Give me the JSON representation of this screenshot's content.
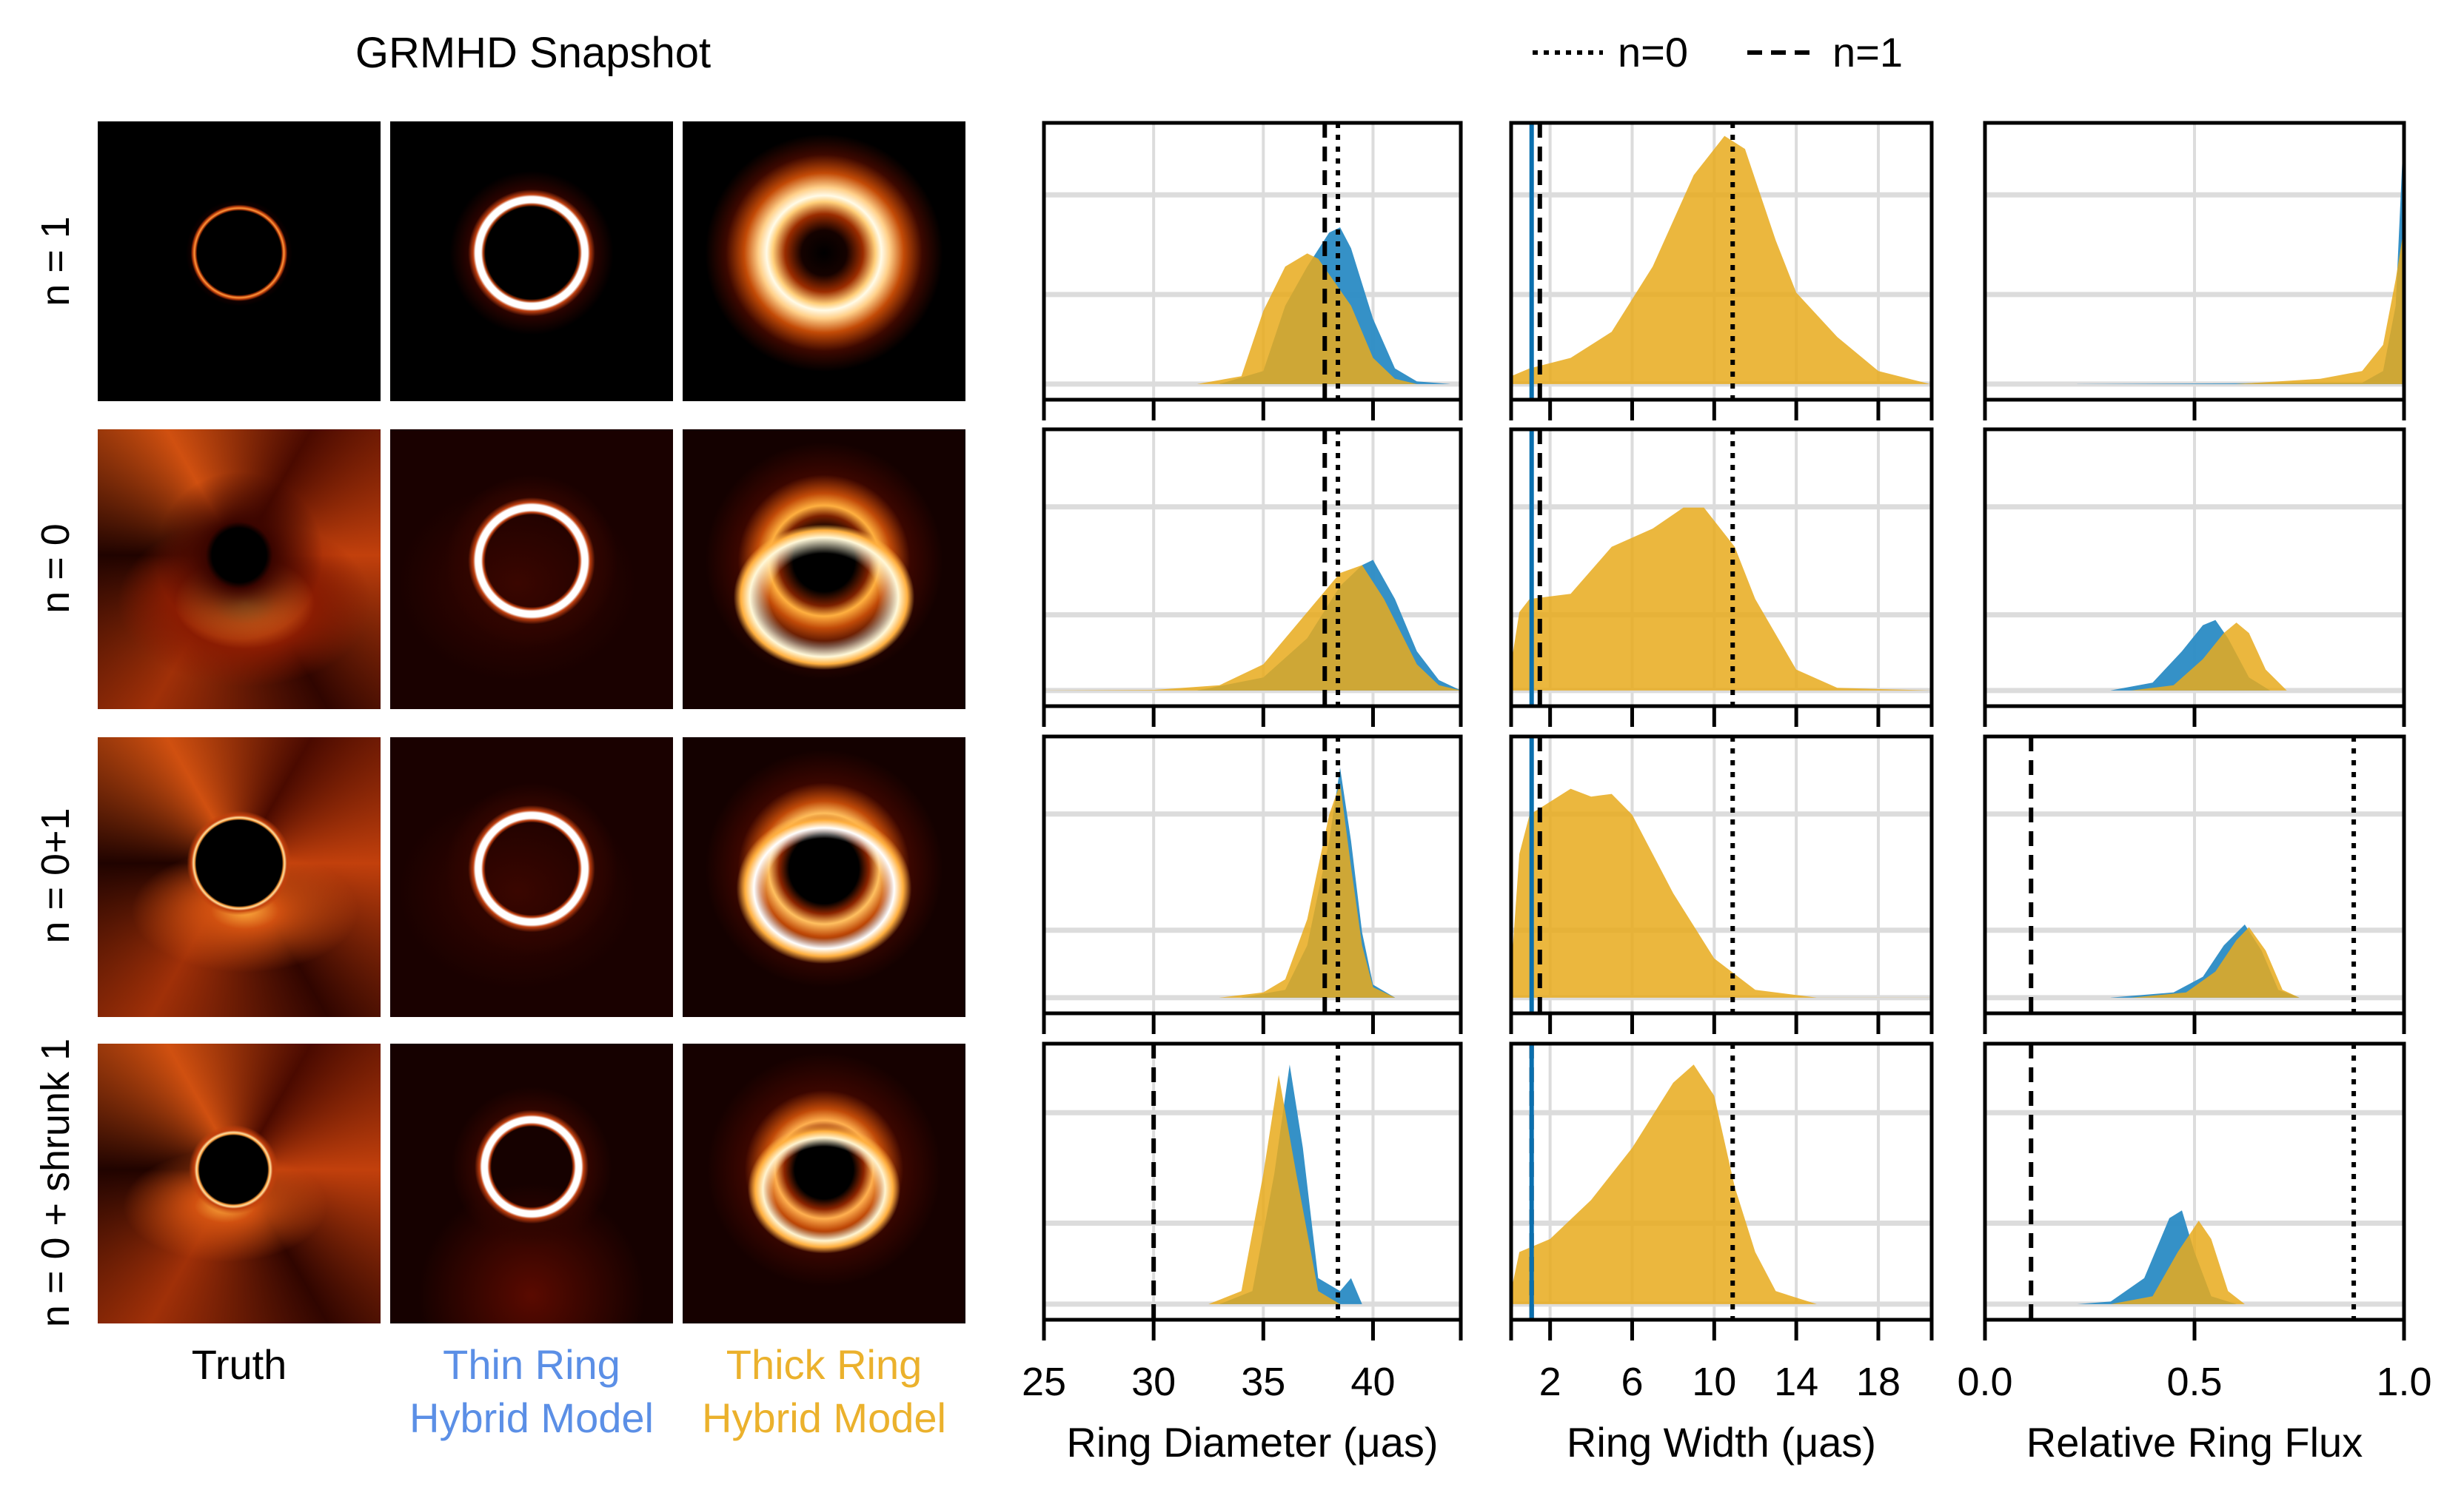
{
  "header": {
    "title": "GRMHD Snapshot",
    "legend": [
      {
        "label": "n=0",
        "style": "dotted"
      },
      {
        "label": "n=1",
        "style": "dashed"
      }
    ]
  },
  "rows": [
    "n = 1",
    "n = 0",
    "n = 0+1",
    "n = 0 + shrunk 1"
  ],
  "image_columns": [
    {
      "line1": "Truth",
      "line2": "",
      "color": "#000000"
    },
    {
      "line1": "Thin Ring",
      "line2": "Hybrid Model",
      "color": "#5b8fe6"
    },
    {
      "line1": "Thick Ring",
      "line2": "Hybrid Model",
      "color": "#ebb12c"
    }
  ],
  "colors": {
    "thin": "#2a8bc4",
    "thick": "#e8ab1e",
    "grid": "#dcdcdc"
  },
  "chart_data": {
    "type": "area",
    "ylim": [
      -0.06,
      1.0
    ],
    "columns": [
      {
        "xlabel": "Ring Diameter (μas)",
        "xlim": [
          25,
          44
        ],
        "xticks": [
          25,
          30,
          35,
          40
        ],
        "xticklabels": [
          "25",
          "30",
          "35",
          "40"
        ]
      },
      {
        "xlabel": "Ring Width (μas)",
        "xlim": [
          0.1,
          20.6
        ],
        "xticks": [
          2,
          6,
          10,
          14,
          18
        ],
        "xticklabels": [
          "2",
          "6",
          "10",
          "14",
          "18"
        ]
      },
      {
        "xlabel": "Relative Ring Flux",
        "xlim": [
          0,
          1
        ],
        "xticks": [
          0,
          0.5,
          1
        ],
        "xticklabels": [
          "0.0",
          "0.5",
          "1.0"
        ]
      }
    ],
    "panels": [
      [
        {
          "vlines": [
            {
              "n": "n=1",
              "style": "dashed",
              "x": 37.8
            },
            {
              "n": "n=0",
              "style": "dotted",
              "x": 38.4
            }
          ],
          "thin": [
            [
              33,
              0
            ],
            [
              35,
              0.05
            ],
            [
              36,
              0.3
            ],
            [
              37,
              0.45
            ],
            [
              38,
              0.58
            ],
            [
              38.5,
              0.6
            ],
            [
              39,
              0.52
            ],
            [
              40,
              0.25
            ],
            [
              41,
              0.06
            ],
            [
              42,
              0.01
            ],
            [
              43.5,
              0
            ]
          ],
          "thick": [
            [
              32,
              0
            ],
            [
              34,
              0.03
            ],
            [
              35,
              0.28
            ],
            [
              36,
              0.45
            ],
            [
              37,
              0.5
            ],
            [
              37.5,
              0.48
            ],
            [
              38,
              0.42
            ],
            [
              39,
              0.3
            ],
            [
              40,
              0.1
            ],
            [
              41,
              0.02
            ],
            [
              42,
              0
            ]
          ]
        },
        {
          "vlines": [
            {
              "n": "n=1",
              "style": "dashed",
              "x": 1.5
            },
            {
              "n": "n=0",
              "style": "dotted",
              "x": 10.9
            }
          ],
          "thin_line": 1.1,
          "thick": [
            [
              0.1,
              0.03
            ],
            [
              1,
              0.06
            ],
            [
              3,
              0.1
            ],
            [
              5,
              0.2
            ],
            [
              7,
              0.45
            ],
            [
              9,
              0.8
            ],
            [
              10.5,
              0.95
            ],
            [
              11.5,
              0.9
            ],
            [
              13,
              0.55
            ],
            [
              14,
              0.35
            ],
            [
              16,
              0.18
            ],
            [
              18,
              0.05
            ],
            [
              20.5,
              0
            ]
          ]
        },
        {
          "vlines": [],
          "thin": [
            [
              0.22,
              0
            ],
            [
              0.9,
              0.005
            ],
            [
              0.95,
              0.05
            ],
            [
              0.98,
              0.3
            ],
            [
              1.0,
              1.0
            ],
            [
              1.0,
              0
            ]
          ],
          "thick": [
            [
              0.6,
              0
            ],
            [
              0.8,
              0.02
            ],
            [
              0.9,
              0.05
            ],
            [
              0.95,
              0.15
            ],
            [
              0.98,
              0.4
            ],
            [
              1.0,
              0.6
            ],
            [
              1.0,
              0
            ]
          ]
        }
      ],
      [
        {
          "vlines": [
            {
              "n": "n=1",
              "style": "dashed",
              "x": 37.8
            },
            {
              "n": "n=0",
              "style": "dotted",
              "x": 38.4
            }
          ],
          "thin": [
            [
              32,
              0
            ],
            [
              35,
              0.05
            ],
            [
              37,
              0.2
            ],
            [
              38.5,
              0.4
            ],
            [
              39.5,
              0.48
            ],
            [
              40,
              0.5
            ],
            [
              41,
              0.35
            ],
            [
              42,
              0.15
            ],
            [
              43,
              0.04
            ],
            [
              44,
              0
            ]
          ],
          "thick": [
            [
              25,
              0
            ],
            [
              30,
              0.002
            ],
            [
              33,
              0.02
            ],
            [
              35,
              0.1
            ],
            [
              37,
              0.3
            ],
            [
              38.5,
              0.45
            ],
            [
              39.5,
              0.48
            ],
            [
              40.5,
              0.35
            ],
            [
              42,
              0.1
            ],
            [
              43,
              0.02
            ],
            [
              44,
              0
            ]
          ]
        },
        {
          "vlines": [
            {
              "n": "n=1",
              "style": "dashed",
              "x": 1.5
            },
            {
              "n": "n=0",
              "style": "dotted",
              "x": 10.9
            }
          ],
          "thin_line": 1.1,
          "thick": [
            [
              0.1,
              0.1
            ],
            [
              0.5,
              0.3
            ],
            [
              1,
              0.35
            ],
            [
              3,
              0.37
            ],
            [
              5,
              0.55
            ],
            [
              7,
              0.62
            ],
            [
              8.5,
              0.7
            ],
            [
              9.5,
              0.7
            ],
            [
              11,
              0.55
            ],
            [
              12,
              0.35
            ],
            [
              14,
              0.08
            ],
            [
              16,
              0.01
            ],
            [
              20.5,
              0
            ]
          ]
        },
        {
          "vlines": [],
          "thin": [
            [
              0.3,
              0
            ],
            [
              0.4,
              0.03
            ],
            [
              0.47,
              0.15
            ],
            [
              0.52,
              0.25
            ],
            [
              0.55,
              0.27
            ],
            [
              0.58,
              0.2
            ],
            [
              0.63,
              0.05
            ],
            [
              0.68,
              0
            ]
          ],
          "thick": [
            [
              0.35,
              0
            ],
            [
              0.45,
              0.02
            ],
            [
              0.52,
              0.12
            ],
            [
              0.57,
              0.22
            ],
            [
              0.6,
              0.26
            ],
            [
              0.63,
              0.22
            ],
            [
              0.67,
              0.08
            ],
            [
              0.72,
              0
            ]
          ]
        }
      ],
      [
        {
          "vlines": [
            {
              "n": "n=1",
              "style": "dashed",
              "x": 37.8
            },
            {
              "n": "n=0",
              "style": "dotted",
              "x": 38.4
            }
          ],
          "thin": [
            [
              34,
              0
            ],
            [
              36,
              0.03
            ],
            [
              37,
              0.2
            ],
            [
              38,
              0.6
            ],
            [
              38.5,
              0.88
            ],
            [
              39,
              0.6
            ],
            [
              39.5,
              0.25
            ],
            [
              40,
              0.05
            ],
            [
              41,
              0
            ]
          ],
          "thick": [
            [
              33,
              0
            ],
            [
              35,
              0.02
            ],
            [
              36,
              0.07
            ],
            [
              37,
              0.3
            ],
            [
              38,
              0.7
            ],
            [
              38.5,
              0.82
            ],
            [
              39,
              0.5
            ],
            [
              39.5,
              0.2
            ],
            [
              40,
              0.04
            ],
            [
              41,
              0
            ]
          ]
        },
        {
          "vlines": [
            {
              "n": "n=1",
              "style": "dashed",
              "x": 1.5
            },
            {
              "n": "n=0",
              "style": "dotted",
              "x": 10.9
            }
          ],
          "thin_line": 1.1,
          "thick": [
            [
              0.1,
              0.1
            ],
            [
              0.5,
              0.55
            ],
            [
              1,
              0.7
            ],
            [
              3,
              0.8
            ],
            [
              4,
              0.77
            ],
            [
              5,
              0.78
            ],
            [
              6,
              0.7
            ],
            [
              7,
              0.55
            ],
            [
              8,
              0.4
            ],
            [
              10,
              0.15
            ],
            [
              12,
              0.03
            ],
            [
              15,
              0
            ],
            [
              20.5,
              0
            ]
          ]
        },
        {
          "vlines": [
            {
              "n": "n=1",
              "style": "dashed",
              "x": 0.11
            },
            {
              "n": "n=0",
              "style": "dotted",
              "x": 0.88
            }
          ],
          "thin": [
            [
              0.3,
              0
            ],
            [
              0.45,
              0.02
            ],
            [
              0.52,
              0.08
            ],
            [
              0.57,
              0.2
            ],
            [
              0.62,
              0.28
            ],
            [
              0.66,
              0.18
            ],
            [
              0.7,
              0.03
            ],
            [
              0.75,
              0
            ]
          ],
          "thick": [
            [
              0.35,
              0
            ],
            [
              0.48,
              0.02
            ],
            [
              0.55,
              0.1
            ],
            [
              0.6,
              0.22
            ],
            [
              0.63,
              0.27
            ],
            [
              0.67,
              0.18
            ],
            [
              0.71,
              0.03
            ],
            [
              0.75,
              0
            ]
          ]
        }
      ],
      [
        {
          "vlines": [
            {
              "n": "n=1",
              "style": "dashed",
              "x": 30
            },
            {
              "n": "n=0",
              "style": "dotted",
              "x": 38.4
            }
          ],
          "thin": [
            [
              33,
              0
            ],
            [
              34.5,
              0.05
            ],
            [
              35.5,
              0.5
            ],
            [
              36.2,
              0.92
            ],
            [
              36.8,
              0.6
            ],
            [
              37.5,
              0.1
            ],
            [
              38.5,
              0.05
            ],
            [
              39,
              0.1
            ],
            [
              39.5,
              0
            ],
            [
              40,
              0
            ]
          ],
          "thick": [
            [
              32.5,
              0
            ],
            [
              34,
              0.05
            ],
            [
              35,
              0.5
            ],
            [
              35.7,
              0.88
            ],
            [
              36.5,
              0.5
            ],
            [
              37.5,
              0.05
            ],
            [
              38.5,
              0
            ],
            [
              40,
              0
            ]
          ]
        },
        {
          "vlines": [
            {
              "n": "n=1",
              "style": "dashed",
              "x": 1.1
            },
            {
              "n": "n=0",
              "style": "dotted",
              "x": 10.9
            }
          ],
          "thin_line": 1.1,
          "thick": [
            [
              0.1,
              0.05
            ],
            [
              0.5,
              0.2
            ],
            [
              2,
              0.25
            ],
            [
              4,
              0.4
            ],
            [
              6,
              0.6
            ],
            [
              8,
              0.85
            ],
            [
              9,
              0.92
            ],
            [
              10,
              0.8
            ],
            [
              11,
              0.45
            ],
            [
              12,
              0.2
            ],
            [
              13,
              0.05
            ],
            [
              15,
              0
            ],
            [
              20.5,
              0
            ]
          ]
        },
        {
          "vlines": [
            {
              "n": "n=1",
              "style": "dashed",
              "x": 0.11
            },
            {
              "n": "n=0",
              "style": "dotted",
              "x": 0.88
            }
          ],
          "thin": [
            [
              0.22,
              0
            ],
            [
              0.3,
              0.01
            ],
            [
              0.38,
              0.1
            ],
            [
              0.44,
              0.33
            ],
            [
              0.47,
              0.36
            ],
            [
              0.5,
              0.2
            ],
            [
              0.54,
              0.03
            ],
            [
              0.6,
              0
            ]
          ],
          "thick": [
            [
              0.3,
              0
            ],
            [
              0.4,
              0.03
            ],
            [
              0.46,
              0.2
            ],
            [
              0.51,
              0.32
            ],
            [
              0.54,
              0.25
            ],
            [
              0.58,
              0.05
            ],
            [
              0.62,
              0
            ]
          ]
        }
      ]
    ]
  }
}
